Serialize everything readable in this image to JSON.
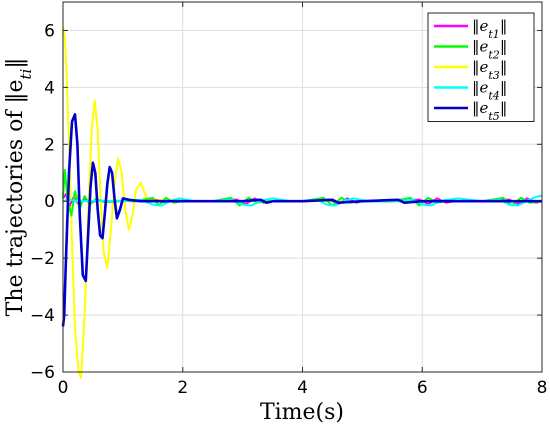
{
  "chart_data": {
    "type": "line",
    "xlabel": "Time(s)",
    "ylabel": "The trajectories of ‖e_ti‖",
    "xlim": [
      0,
      8
    ],
    "ylim": [
      -6,
      7
    ],
    "xticks": [
      0,
      2,
      4,
      6,
      8
    ],
    "yticks": [
      -6,
      -4,
      -2,
      0,
      2,
      4,
      6
    ],
    "grid": true,
    "legend_position": "top-right",
    "series": [
      {
        "name": "‖et1‖",
        "sub": "t1",
        "color": "#ff00ff",
        "x": [
          0,
          0.05,
          0.1,
          0.18,
          0.26,
          0.35,
          0.45,
          0.6,
          0.8,
          1.0,
          1.3,
          1.55,
          1.7,
          1.85,
          2.0,
          2.5,
          2.9,
          3.05,
          3.2,
          3.35,
          3.5,
          4.0,
          4.45,
          4.6,
          4.75,
          4.9,
          5.0,
          5.5,
          5.95,
          6.1,
          6.25,
          6.4,
          6.55,
          7.0,
          7.45,
          7.6,
          7.75,
          7.9,
          8.0
        ],
        "y": [
          0.1,
          0.25,
          -0.2,
          0.15,
          -0.12,
          0.08,
          -0.05,
          0.03,
          -0.02,
          0.01,
          0.0,
          0.04,
          -0.04,
          0.03,
          0.0,
          0.0,
          0.06,
          -0.1,
          0.1,
          -0.05,
          0.0,
          0.0,
          0.06,
          -0.1,
          0.1,
          -0.05,
          0.0,
          0.0,
          0.06,
          -0.1,
          0.1,
          -0.05,
          0.0,
          0.0,
          0.06,
          -0.1,
          0.1,
          -0.05,
          0.0
        ]
      },
      {
        "name": "‖et2‖",
        "sub": "t2",
        "color": "#00ff00",
        "x": [
          0,
          0.03,
          0.08,
          0.14,
          0.2,
          0.28,
          0.36,
          0.45,
          0.55,
          0.7,
          0.9,
          1.2,
          1.5,
          1.6,
          1.72,
          1.85,
          2.0,
          2.5,
          2.8,
          2.95,
          3.1,
          3.25,
          3.4,
          4.0,
          4.35,
          4.5,
          4.65,
          4.8,
          4.95,
          5.5,
          5.8,
          5.95,
          6.1,
          6.25,
          6.4,
          7.0,
          7.35,
          7.5,
          7.65,
          7.8,
          8.0
        ],
        "y": [
          0.1,
          1.1,
          0.0,
          -0.5,
          0.35,
          -0.25,
          0.18,
          -0.12,
          0.08,
          -0.04,
          0.02,
          0.0,
          0.12,
          -0.15,
          0.12,
          -0.05,
          0.0,
          0.0,
          0.12,
          -0.15,
          0.12,
          -0.05,
          0.0,
          0.0,
          0.12,
          -0.15,
          0.12,
          -0.05,
          0.0,
          0.0,
          0.12,
          -0.15,
          0.12,
          -0.05,
          0.0,
          0.0,
          0.12,
          -0.15,
          0.12,
          -0.05,
          0.0
        ]
      },
      {
        "name": "‖et3‖",
        "sub": "t3",
        "color": "#ffff00",
        "x": [
          0,
          0.03,
          0.06,
          0.1,
          0.15,
          0.2,
          0.26,
          0.3,
          0.36,
          0.42,
          0.48,
          0.53,
          0.58,
          0.63,
          0.68,
          0.74,
          0.8,
          0.86,
          0.92,
          0.98,
          1.04,
          1.1,
          1.16,
          1.22,
          1.3,
          1.4,
          1.6,
          1.8,
          2.0,
          3.0,
          4.0,
          5.0,
          6.0,
          7.0,
          8.0
        ],
        "y": [
          6.1,
          5.8,
          4.5,
          2.0,
          -1.5,
          -4.5,
          -6.0,
          -6.2,
          -4.0,
          -0.5,
          2.5,
          3.55,
          2.5,
          0.0,
          -1.8,
          -2.35,
          -1.0,
          0.6,
          1.5,
          1.0,
          -0.3,
          -1.0,
          -0.5,
          0.4,
          0.65,
          0.1,
          0.05,
          0.0,
          0.0,
          0.0,
          0.0,
          0.0,
          0.0,
          0.0,
          0.0
        ]
      },
      {
        "name": "‖et4‖",
        "sub": "t4",
        "color": "#00ffff",
        "x": [
          0,
          0.1,
          0.3,
          0.6,
          1.0,
          1.3,
          1.5,
          1.65,
          1.8,
          1.95,
          2.2,
          2.5,
          2.8,
          3.0,
          3.15,
          3.3,
          3.5,
          3.8,
          4.0,
          4.25,
          4.4,
          4.55,
          4.7,
          4.85,
          5.1,
          5.6,
          5.85,
          6.0,
          6.15,
          6.3,
          6.6,
          7.0,
          7.3,
          7.45,
          7.6,
          7.75,
          7.9,
          8.0
        ],
        "y": [
          0.0,
          0.05,
          0.0,
          0.02,
          0.0,
          0.05,
          -0.12,
          -0.15,
          0.02,
          0.1,
          0.0,
          0.0,
          0.05,
          -0.12,
          -0.15,
          0.02,
          0.1,
          0.0,
          0.0,
          0.05,
          -0.12,
          -0.15,
          0.02,
          0.1,
          0.0,
          0.0,
          0.05,
          -0.12,
          -0.15,
          0.02,
          0.1,
          0.0,
          0.05,
          -0.12,
          -0.15,
          0.02,
          0.15,
          0.2
        ]
      },
      {
        "name": "‖et5‖",
        "sub": "t5",
        "color": "#0000cc",
        "x": [
          0,
          0.02,
          0.05,
          0.1,
          0.15,
          0.2,
          0.24,
          0.28,
          0.33,
          0.38,
          0.42,
          0.46,
          0.5,
          0.54,
          0.58,
          0.62,
          0.66,
          0.7,
          0.74,
          0.78,
          0.82,
          0.86,
          0.9,
          0.95,
          1.0,
          1.1,
          1.3,
          1.6,
          2.0,
          3.0,
          3.3,
          3.4,
          3.5,
          4.0,
          4.5,
          4.6,
          5.0,
          5.6,
          5.7,
          6.0,
          7.0,
          7.5,
          8.0
        ],
        "y": [
          -4.4,
          -4.0,
          -2.0,
          1.0,
          2.8,
          3.05,
          2.0,
          -0.5,
          -2.6,
          -2.8,
          -1.2,
          0.5,
          1.35,
          1.0,
          -0.3,
          -1.2,
          -1.3,
          -0.4,
          0.6,
          1.2,
          1.0,
          0.1,
          -0.6,
          -0.3,
          0.1,
          0.05,
          0.0,
          0.0,
          0.0,
          0.0,
          0.05,
          -0.05,
          0.0,
          0.0,
          0.05,
          -0.05,
          0.0,
          0.05,
          -0.05,
          0.0,
          0.0,
          0.0,
          0.0
        ]
      }
    ]
  }
}
